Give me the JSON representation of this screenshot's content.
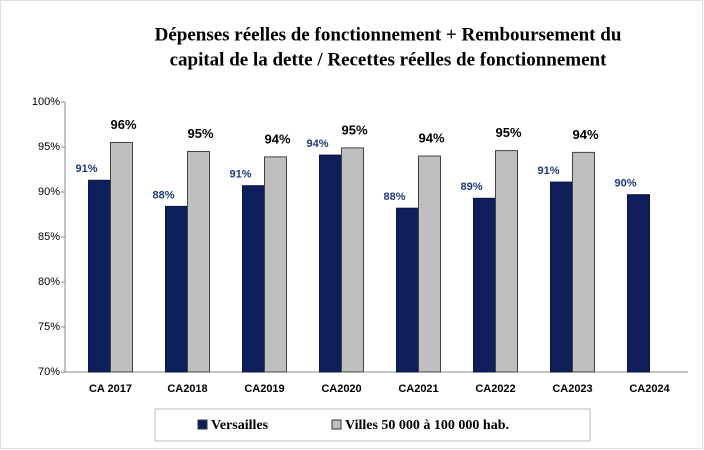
{
  "chart_data": {
    "type": "bar",
    "title": [
      "Dépenses réelles de fonctionnement + Remboursement du",
      "capital de la dette / Recettes réelles de fonctionnement"
    ],
    "categories": [
      "CA 2017",
      "CA2018",
      "CA2019",
      "CA2020",
      "CA2021",
      "CA2022",
      "CA2023",
      "CA2024"
    ],
    "series": [
      {
        "name": "Versailles",
        "color": "#0f1f5c",
        "values": [
          91.3,
          88.4,
          90.7,
          94.1,
          88.2,
          89.3,
          91.1,
          89.7
        ],
        "value_labels": [
          "91%",
          "88%",
          "91%",
          "94%",
          "88%",
          "89%",
          "91%",
          "90%"
        ]
      },
      {
        "name": "Villes 50 000 à 100 000 hab.",
        "color": "#bfbfbf",
        "values": [
          95.5,
          94.5,
          93.9,
          94.9,
          94,
          94.6,
          94.4,
          null
        ],
        "value_labels": [
          "96%",
          "95%",
          "94%",
          "95%",
          "94%",
          "95%",
          "94%",
          null
        ]
      }
    ],
    "ylim": [
      70,
      100
    ],
    "yticks": [
      {
        "value": 70,
        "label": "70%"
      },
      {
        "value": 75,
        "label": "75%"
      },
      {
        "value": 80,
        "label": "80%"
      },
      {
        "value": 85,
        "label": "85%"
      },
      {
        "value": 90,
        "label": "90%"
      },
      {
        "value": 95,
        "label": "95%"
      },
      {
        "value": 100,
        "label": "100%"
      }
    ],
    "grid": false
  }
}
